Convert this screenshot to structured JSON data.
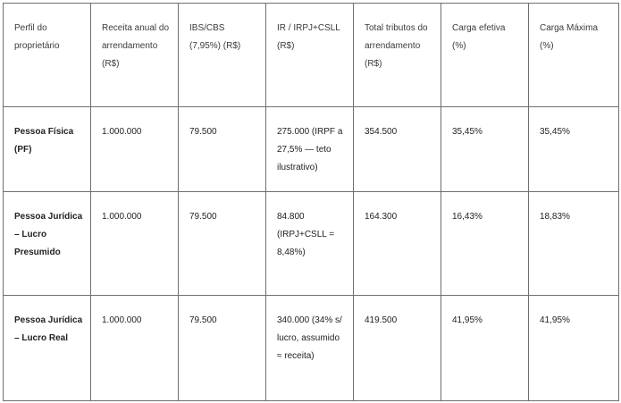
{
  "table": {
    "headers": [
      "Perfil do proprietário",
      "Receita anual do arrendamento (R$)",
      "IBS/CBS (7,95%) (R$)",
      "IR / IRPJ+CSLL (R$)",
      "Total tributos do arrendamento (R$)",
      "Carga efetiva (%)",
      "Carga Máxima (%)"
    ],
    "rows": [
      {
        "profile": "Pessoa Física (PF)",
        "revenue": "1.000.000",
        "ibs_cbs": "79.500",
        "ir": "275.000 (IRPF a 27,5% — teto ilustrativo)",
        "total": "354.500",
        "effective": "35,45%",
        "max": "35,45%"
      },
      {
        "profile": "Pessoa Jurídica – Lucro Presumido",
        "revenue": "1.000.000",
        "ibs_cbs": "79.500",
        "ir": "84.800 (IRPJ+CSLL = 8,48%)",
        "total": "164.300",
        "effective": "16,43%",
        "max": "18,83%"
      },
      {
        "profile": "Pessoa Jurídica – Lucro Real",
        "revenue": "1.000.000",
        "ibs_cbs": "79.500",
        "ir": "340.000 (34% s/ lucro, assumido ≈ receita)",
        "total": "419.500",
        "effective": "41,95%",
        "max": "41,95%"
      }
    ]
  }
}
